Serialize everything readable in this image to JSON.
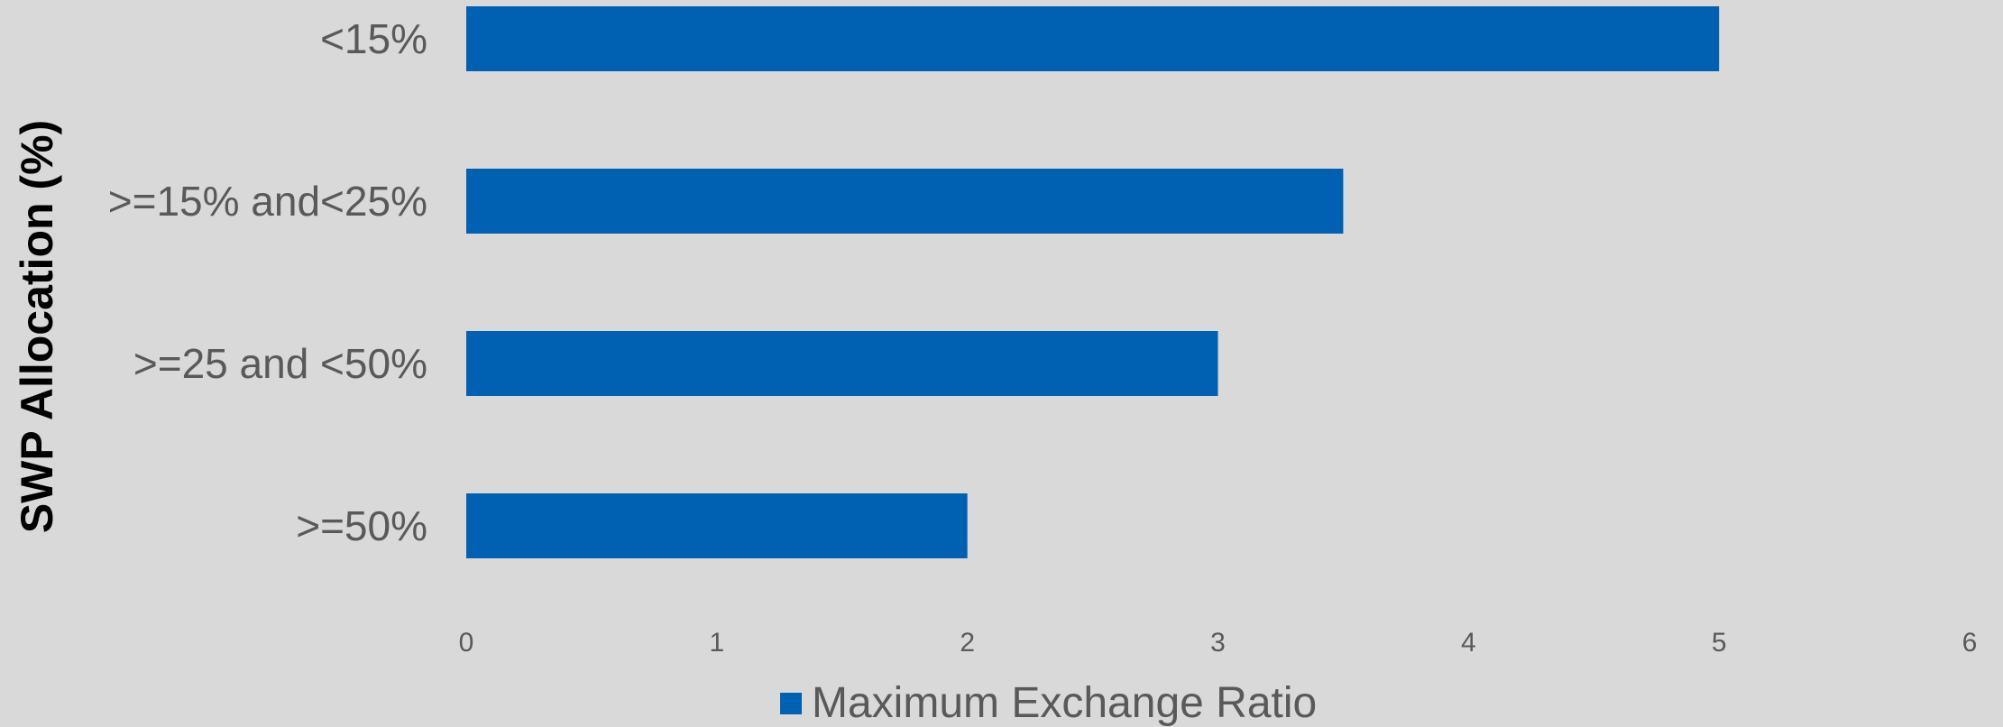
{
  "chart_data": {
    "type": "bar",
    "orientation": "horizontal",
    "categories": [
      "<15%",
      ">=15% and<25%",
      ">=25 and <50%",
      ">=50%"
    ],
    "series": [
      {
        "name": "Maximum Exchange Ratio",
        "values": [
          5,
          3.5,
          3,
          2
        ],
        "color": "#0061b3"
      }
    ],
    "title": "",
    "xlabel": "",
    "ylabel": "SWP Allocation (%)",
    "xlim": [
      0,
      6
    ],
    "xticks": [
      "0",
      "1",
      "2",
      "3",
      "4",
      "5",
      "6"
    ],
    "grid": false,
    "legend_position": "bottom"
  },
  "colors": {
    "background": "#d9d9d9",
    "bar": "#0061b3",
    "label_text": "#595959",
    "axis_title": "#000000"
  }
}
